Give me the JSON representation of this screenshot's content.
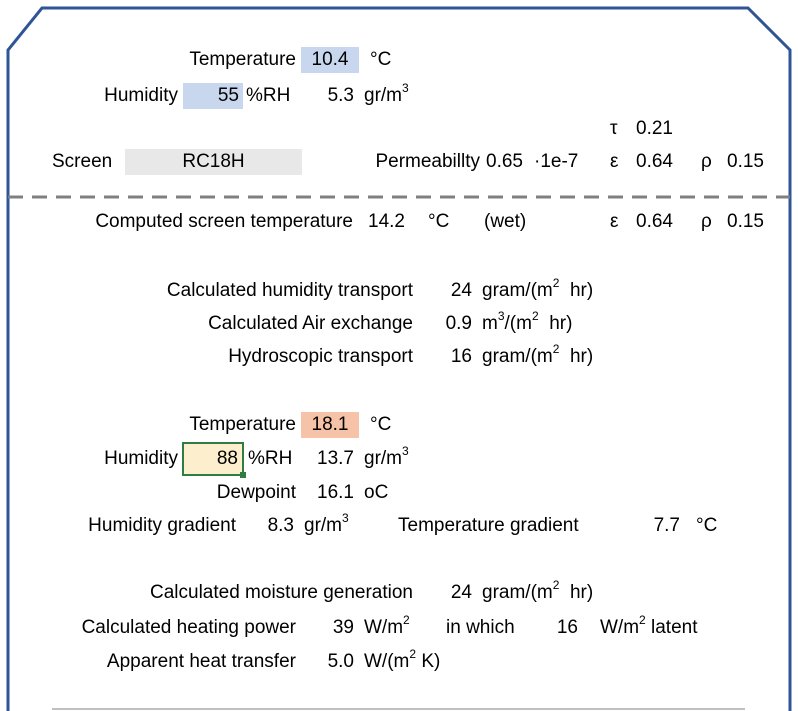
{
  "inputs": {
    "temp_label": "Temperature",
    "temp_value": "10.4",
    "temp_unit": "°C",
    "hum_label": "Humidity",
    "hum_value": "55",
    "hum_unit": "%RH",
    "hum_abs": "5.3",
    "hum_abs_unit": "gr/m",
    "tau_sym": "τ",
    "tau_val": "0.21",
    "screen_label": "Screen",
    "screen_value": "RC18H",
    "perm_label": "Permeabillty",
    "perm_value": "0.65",
    "perm_unit": "·1e-7",
    "eps_sym": "ε",
    "eps_val": "0.64",
    "rho_sym": "ρ",
    "rho_val": "0.15"
  },
  "computed": {
    "screen_temp_label": "Computed screen temperature",
    "screen_temp_value": "14.2",
    "screen_temp_unit": "°C",
    "wet": "(wet)",
    "eps_sym": "ε",
    "eps_val": "0.64",
    "rho_sym": "ρ",
    "rho_val": "0.15",
    "humidity_transport_label": "Calculated humidity transport",
    "humidity_transport_value": "24",
    "humidity_transport_unit_a": "gram/(m",
    "humidity_transport_unit_b": "hr)",
    "air_exchange_label": "Calculated Air exchange",
    "air_exchange_value": "0.9",
    "air_exchange_unit_a": "m",
    "air_exchange_unit_b": "/(m",
    "air_exchange_unit_c": "hr)",
    "hydro_label": "Hydroscopic transport",
    "hydro_value": "16",
    "hydro_unit_a": "gram/(m",
    "hydro_unit_b": "hr)"
  },
  "inside": {
    "temp_label": "Temperature",
    "temp_value": "18.1",
    "temp_unit": "°C",
    "hum_label": "Humidity",
    "hum_value": "88",
    "hum_unit": "%RH",
    "hum_abs": "13.7",
    "hum_abs_unit": "gr/m",
    "dew_label": "Dewpoint",
    "dew_value": "16.1",
    "dew_unit": "oC",
    "hum_grad_label": "Humidity gradient",
    "hum_grad_value": "8.3",
    "hum_grad_unit": "gr/m",
    "temp_grad_label": "Temperature gradient",
    "temp_grad_value": "7.7",
    "temp_grad_unit": "°C"
  },
  "results": {
    "moisture_label": "Calculated moisture generation",
    "moisture_value": "24",
    "moisture_unit_a": "gram/(m",
    "moisture_unit_b": "hr)",
    "heating_label": "Calculated heating power",
    "heating_value": "39",
    "heating_unit": "W/m",
    "in_which": "in which",
    "latent_value": "16",
    "latent_unit_a": "W/m",
    "latent_unit_b": "latent",
    "heat_transfer_label": "Apparent heat transfer",
    "heat_transfer_value": "5.0",
    "heat_transfer_unit_a": "W/(m",
    "heat_transfer_unit_b": "K)"
  },
  "sup": {
    "two": "2",
    "three": "3"
  },
  "colors": {
    "frame": "#2f5597",
    "divider": "#7f7f7f",
    "input_blue": "#c9d7ee",
    "input_orange": "#f6c2a8",
    "selected_fill": "#fdefcd",
    "selected_border": "#2f7d43"
  }
}
